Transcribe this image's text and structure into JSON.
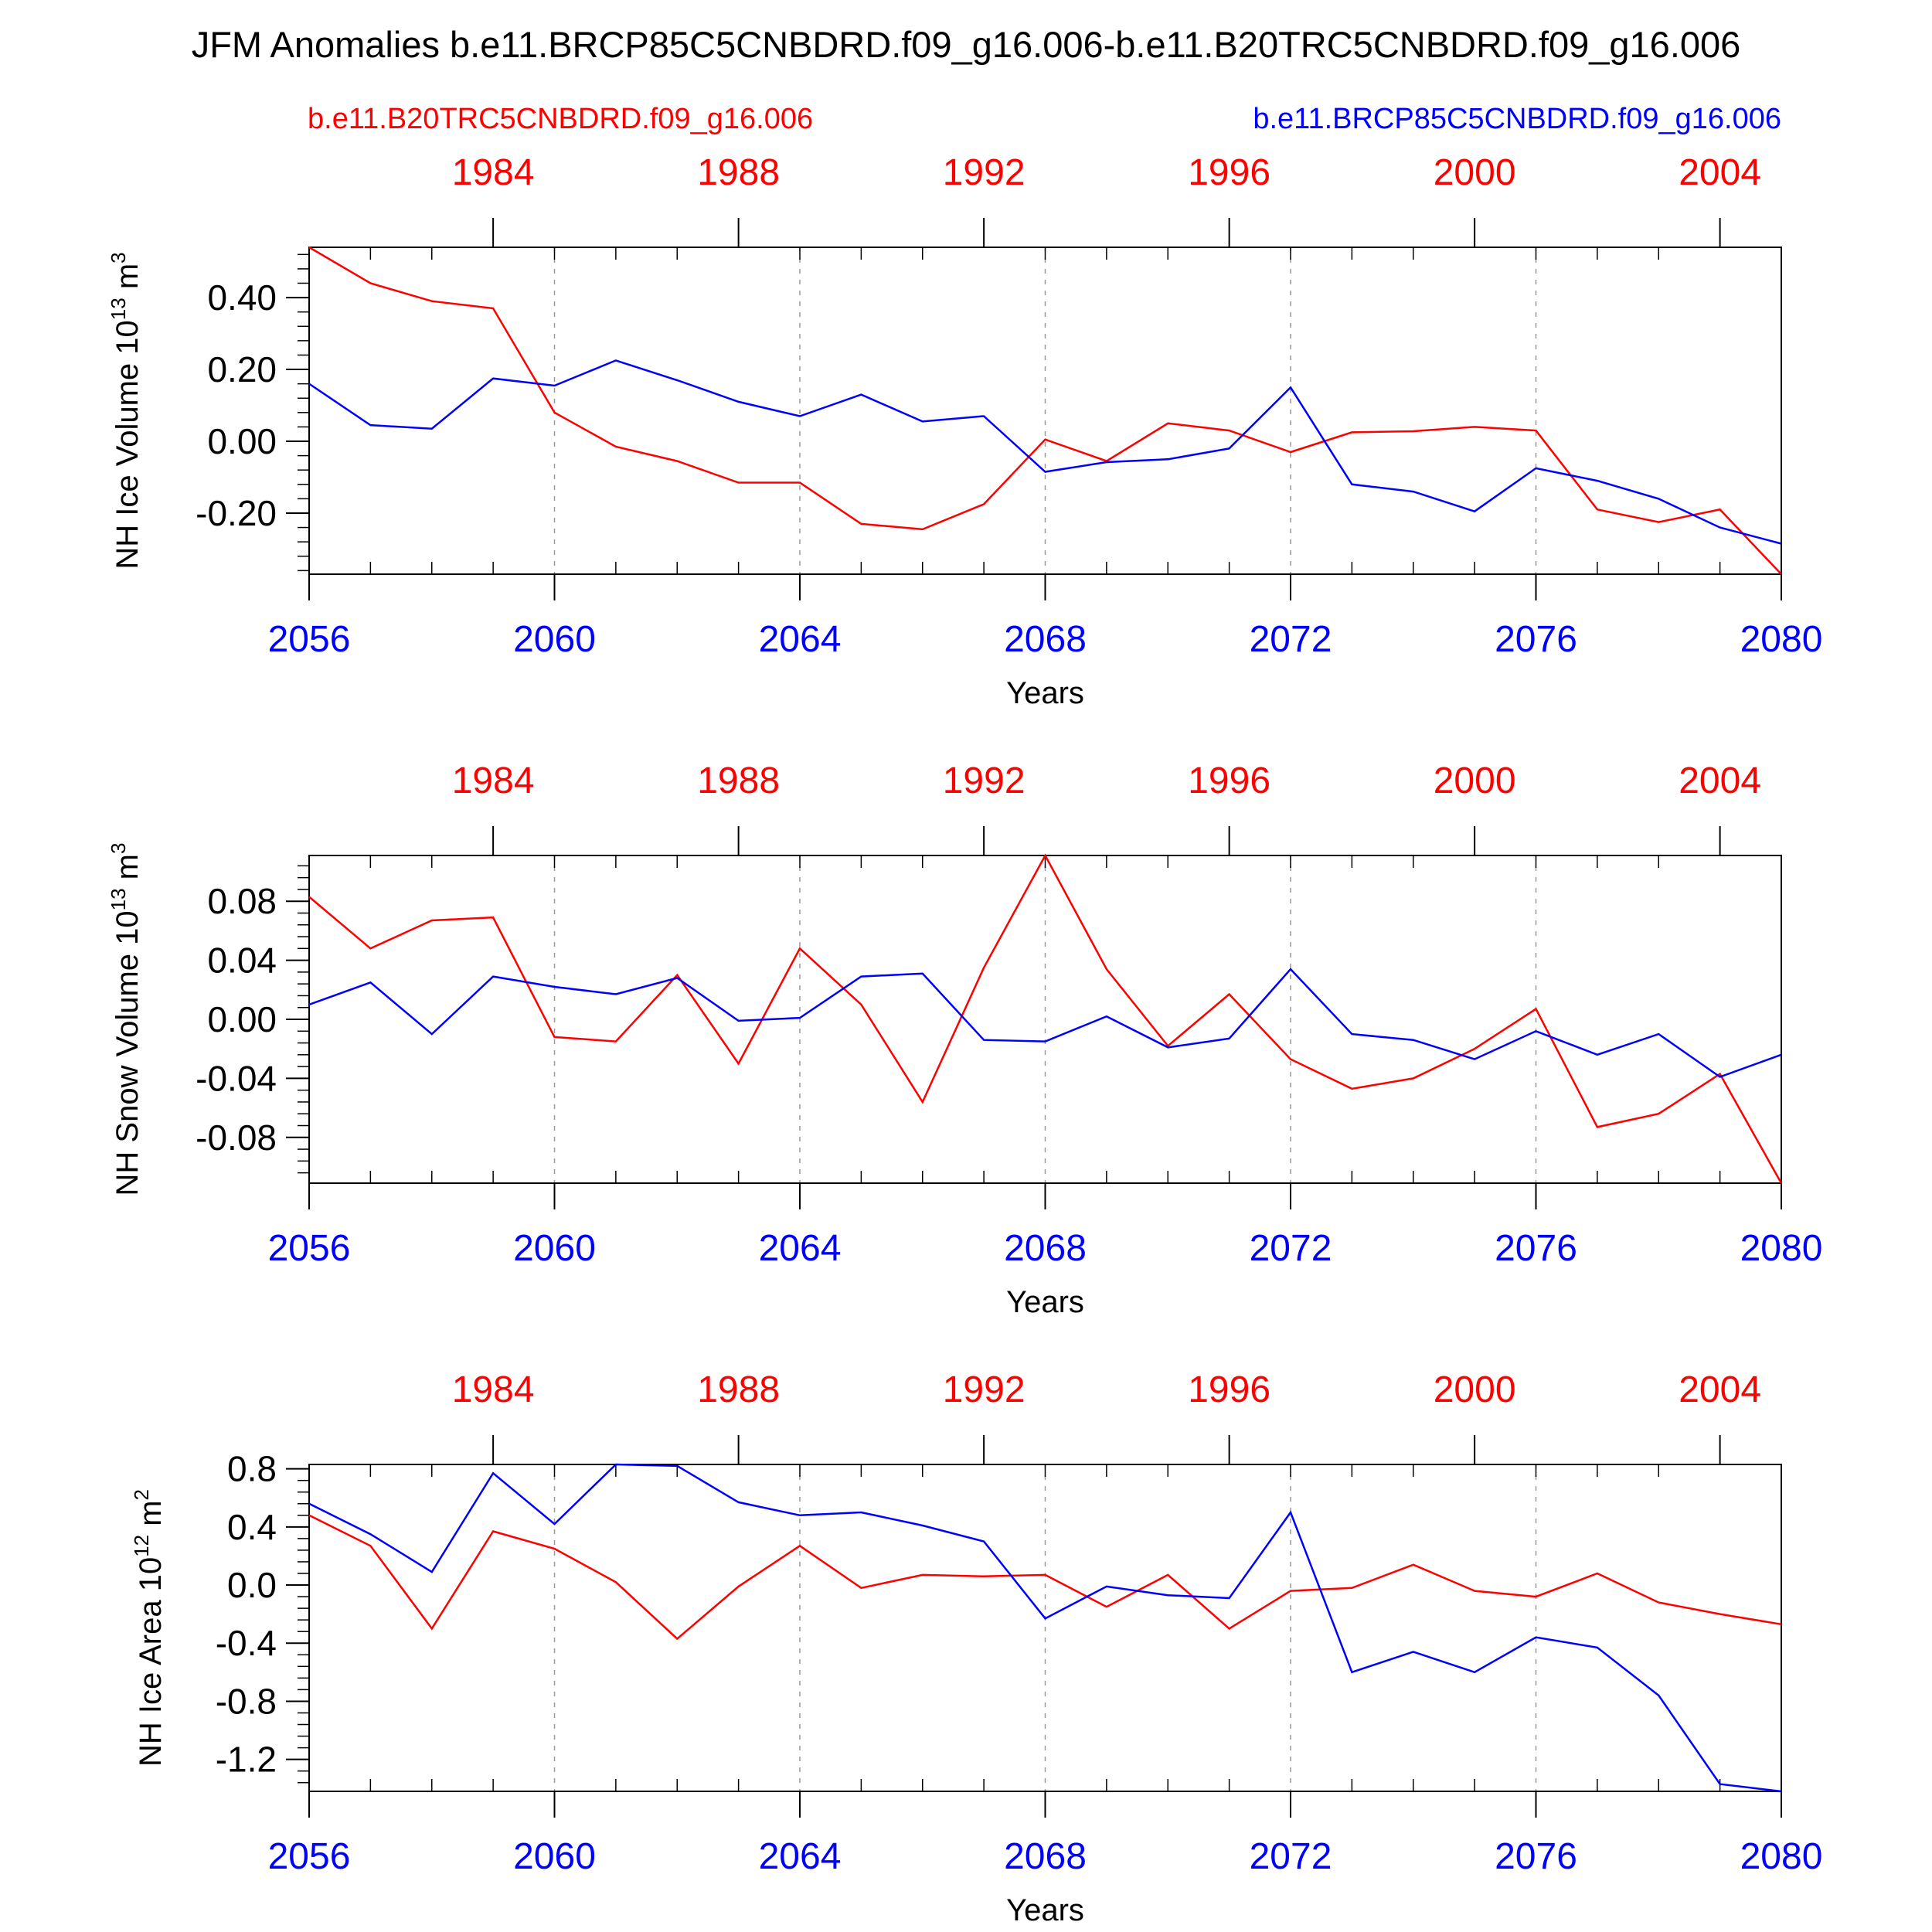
{
  "title": "JFM Anomalies b.e11.BRCP85C5CNBDRD.f09_g16.006-b.e11.B20TRC5CNBDRD.f09_g16.006",
  "subtitle_left": "b.e11.B20TRC5CNBDRD.f09_g16.006",
  "subtitle_right": "b.e11.BRCP85C5CNBDRD.f09_g16.006",
  "colors": {
    "historical": "#ff0000",
    "future": "#0000ff",
    "frame": "#000000",
    "grid": "#999999"
  },
  "chart_data": [
    {
      "type": "line",
      "ylabel_text": "NH Ice Volume 10",
      "ylabel_exp": "13",
      "ylabel_unit": " m",
      "ylabel_unit_exp": "3",
      "xlabel": "Years",
      "x_bottom": {
        "ticks": [
          "2056",
          "2060",
          "2064",
          "2068",
          "2072",
          "2076",
          "2080"
        ],
        "range": [
          2056,
          2080
        ]
      },
      "x_top": {
        "ticks": [
          "1984",
          "1988",
          "1992",
          "1996",
          "2000",
          "2004"
        ],
        "range": [
          1981,
          2005
        ]
      },
      "ylim": [
        -0.37,
        0.54
      ],
      "y_ticks": [
        0.4,
        0.2,
        0.0,
        -0.2
      ],
      "y_tick_labels": [
        "0.40",
        "0.20",
        "0.00",
        "-0.20"
      ],
      "grid": "vertical dashed",
      "series": [
        {
          "color": "#ff0000",
          "axis": "top",
          "values": [
            0.54,
            0.44,
            0.39,
            0.37,
            0.08,
            -0.015,
            -0.055,
            -0.115,
            -0.115,
            -0.23,
            -0.245,
            -0.175,
            0.005,
            -0.055,
            0.05,
            0.03,
            -0.03,
            0.025,
            0.028,
            0.04,
            0.03,
            -0.19,
            -0.225,
            -0.19,
            -0.37
          ]
        },
        {
          "color": "#0000ff",
          "axis": "bottom",
          "values": [
            0.16,
            0.045,
            0.035,
            0.175,
            0.155,
            0.225,
            0.17,
            0.11,
            0.07,
            0.13,
            0.055,
            0.07,
            -0.085,
            -0.058,
            -0.05,
            -0.02,
            0.15,
            -0.12,
            -0.14,
            -0.195,
            -0.075,
            -0.11,
            -0.16,
            -0.24,
            -0.285
          ]
        }
      ]
    },
    {
      "type": "line",
      "ylabel_text": "NH Snow Volume 10",
      "ylabel_exp": "13",
      "ylabel_unit": " m",
      "ylabel_unit_exp": "3",
      "xlabel": "Years",
      "x_bottom": {
        "ticks": [
          "2056",
          "2060",
          "2064",
          "2068",
          "2072",
          "2076",
          "2080"
        ],
        "range": [
          2056,
          2080
        ]
      },
      "x_top": {
        "ticks": [
          "1984",
          "1988",
          "1992",
          "1996",
          "2000",
          "2004"
        ],
        "range": [
          1981,
          2005
        ]
      },
      "ylim": [
        -0.111,
        0.111
      ],
      "y_ticks": [
        0.08,
        0.04,
        0.0,
        -0.04,
        -0.08
      ],
      "y_tick_labels": [
        "0.08",
        "0.04",
        "0.00",
        "-0.04",
        "-0.08"
      ],
      "grid": "vertical dashed",
      "series": [
        {
          "color": "#ff0000",
          "axis": "top",
          "values": [
            0.083,
            0.048,
            0.067,
            0.069,
            -0.012,
            -0.015,
            0.03,
            -0.03,
            0.048,
            0.01,
            -0.056,
            0.035,
            0.111,
            0.034,
            -0.018,
            0.017,
            -0.027,
            -0.047,
            -0.04,
            -0.02,
            0.007,
            -0.073,
            -0.064,
            -0.037,
            -0.111
          ]
        },
        {
          "color": "#0000ff",
          "axis": "bottom",
          "values": [
            0.01,
            0.025,
            -0.01,
            0.029,
            0.022,
            0.017,
            0.028,
            -0.001,
            0.001,
            0.029,
            0.031,
            -0.014,
            -0.015,
            0.002,
            -0.019,
            -0.013,
            0.034,
            -0.01,
            -0.014,
            -0.027,
            -0.008,
            -0.024,
            -0.01,
            -0.039,
            -0.024
          ]
        }
      ]
    },
    {
      "type": "line",
      "ylabel_text": "NH Ice Area 10",
      "ylabel_exp": "12",
      "ylabel_unit": " m",
      "ylabel_unit_exp": "2",
      "xlabel": "Years",
      "x_bottom": {
        "ticks": [
          "2056",
          "2060",
          "2064",
          "2068",
          "2072",
          "2076",
          "2080"
        ],
        "range": [
          2056,
          2080
        ]
      },
      "x_top": {
        "ticks": [
          "1984",
          "1988",
          "1992",
          "1996",
          "2000",
          "2004"
        ],
        "range": [
          1981,
          2005
        ]
      },
      "ylim": [
        -1.42,
        0.83
      ],
      "y_ticks": [
        0.8,
        0.4,
        0.0,
        -0.4,
        -0.8,
        -1.2
      ],
      "y_tick_labels": [
        "0.8",
        "0.4",
        "0.0",
        "-0.4",
        "-0.8",
        "-1.2"
      ],
      "grid": "vertical dashed",
      "series": [
        {
          "color": "#ff0000",
          "axis": "top",
          "values": [
            0.48,
            0.27,
            -0.3,
            0.37,
            0.25,
            0.02,
            -0.37,
            -0.01,
            0.27,
            -0.02,
            0.07,
            0.06,
            0.07,
            -0.15,
            0.07,
            -0.3,
            -0.04,
            -0.02,
            0.14,
            -0.04,
            -0.08,
            0.08,
            -0.12,
            -0.2,
            -0.27
          ]
        },
        {
          "color": "#0000ff",
          "axis": "bottom",
          "values": [
            0.56,
            0.35,
            0.09,
            0.77,
            0.42,
            0.83,
            0.82,
            0.57,
            0.48,
            0.5,
            0.41,
            0.3,
            -0.23,
            -0.01,
            -0.07,
            -0.09,
            0.5,
            -0.6,
            -0.46,
            -0.6,
            -0.36,
            -0.43,
            -0.76,
            -1.37,
            -1.42
          ]
        }
      ]
    }
  ]
}
